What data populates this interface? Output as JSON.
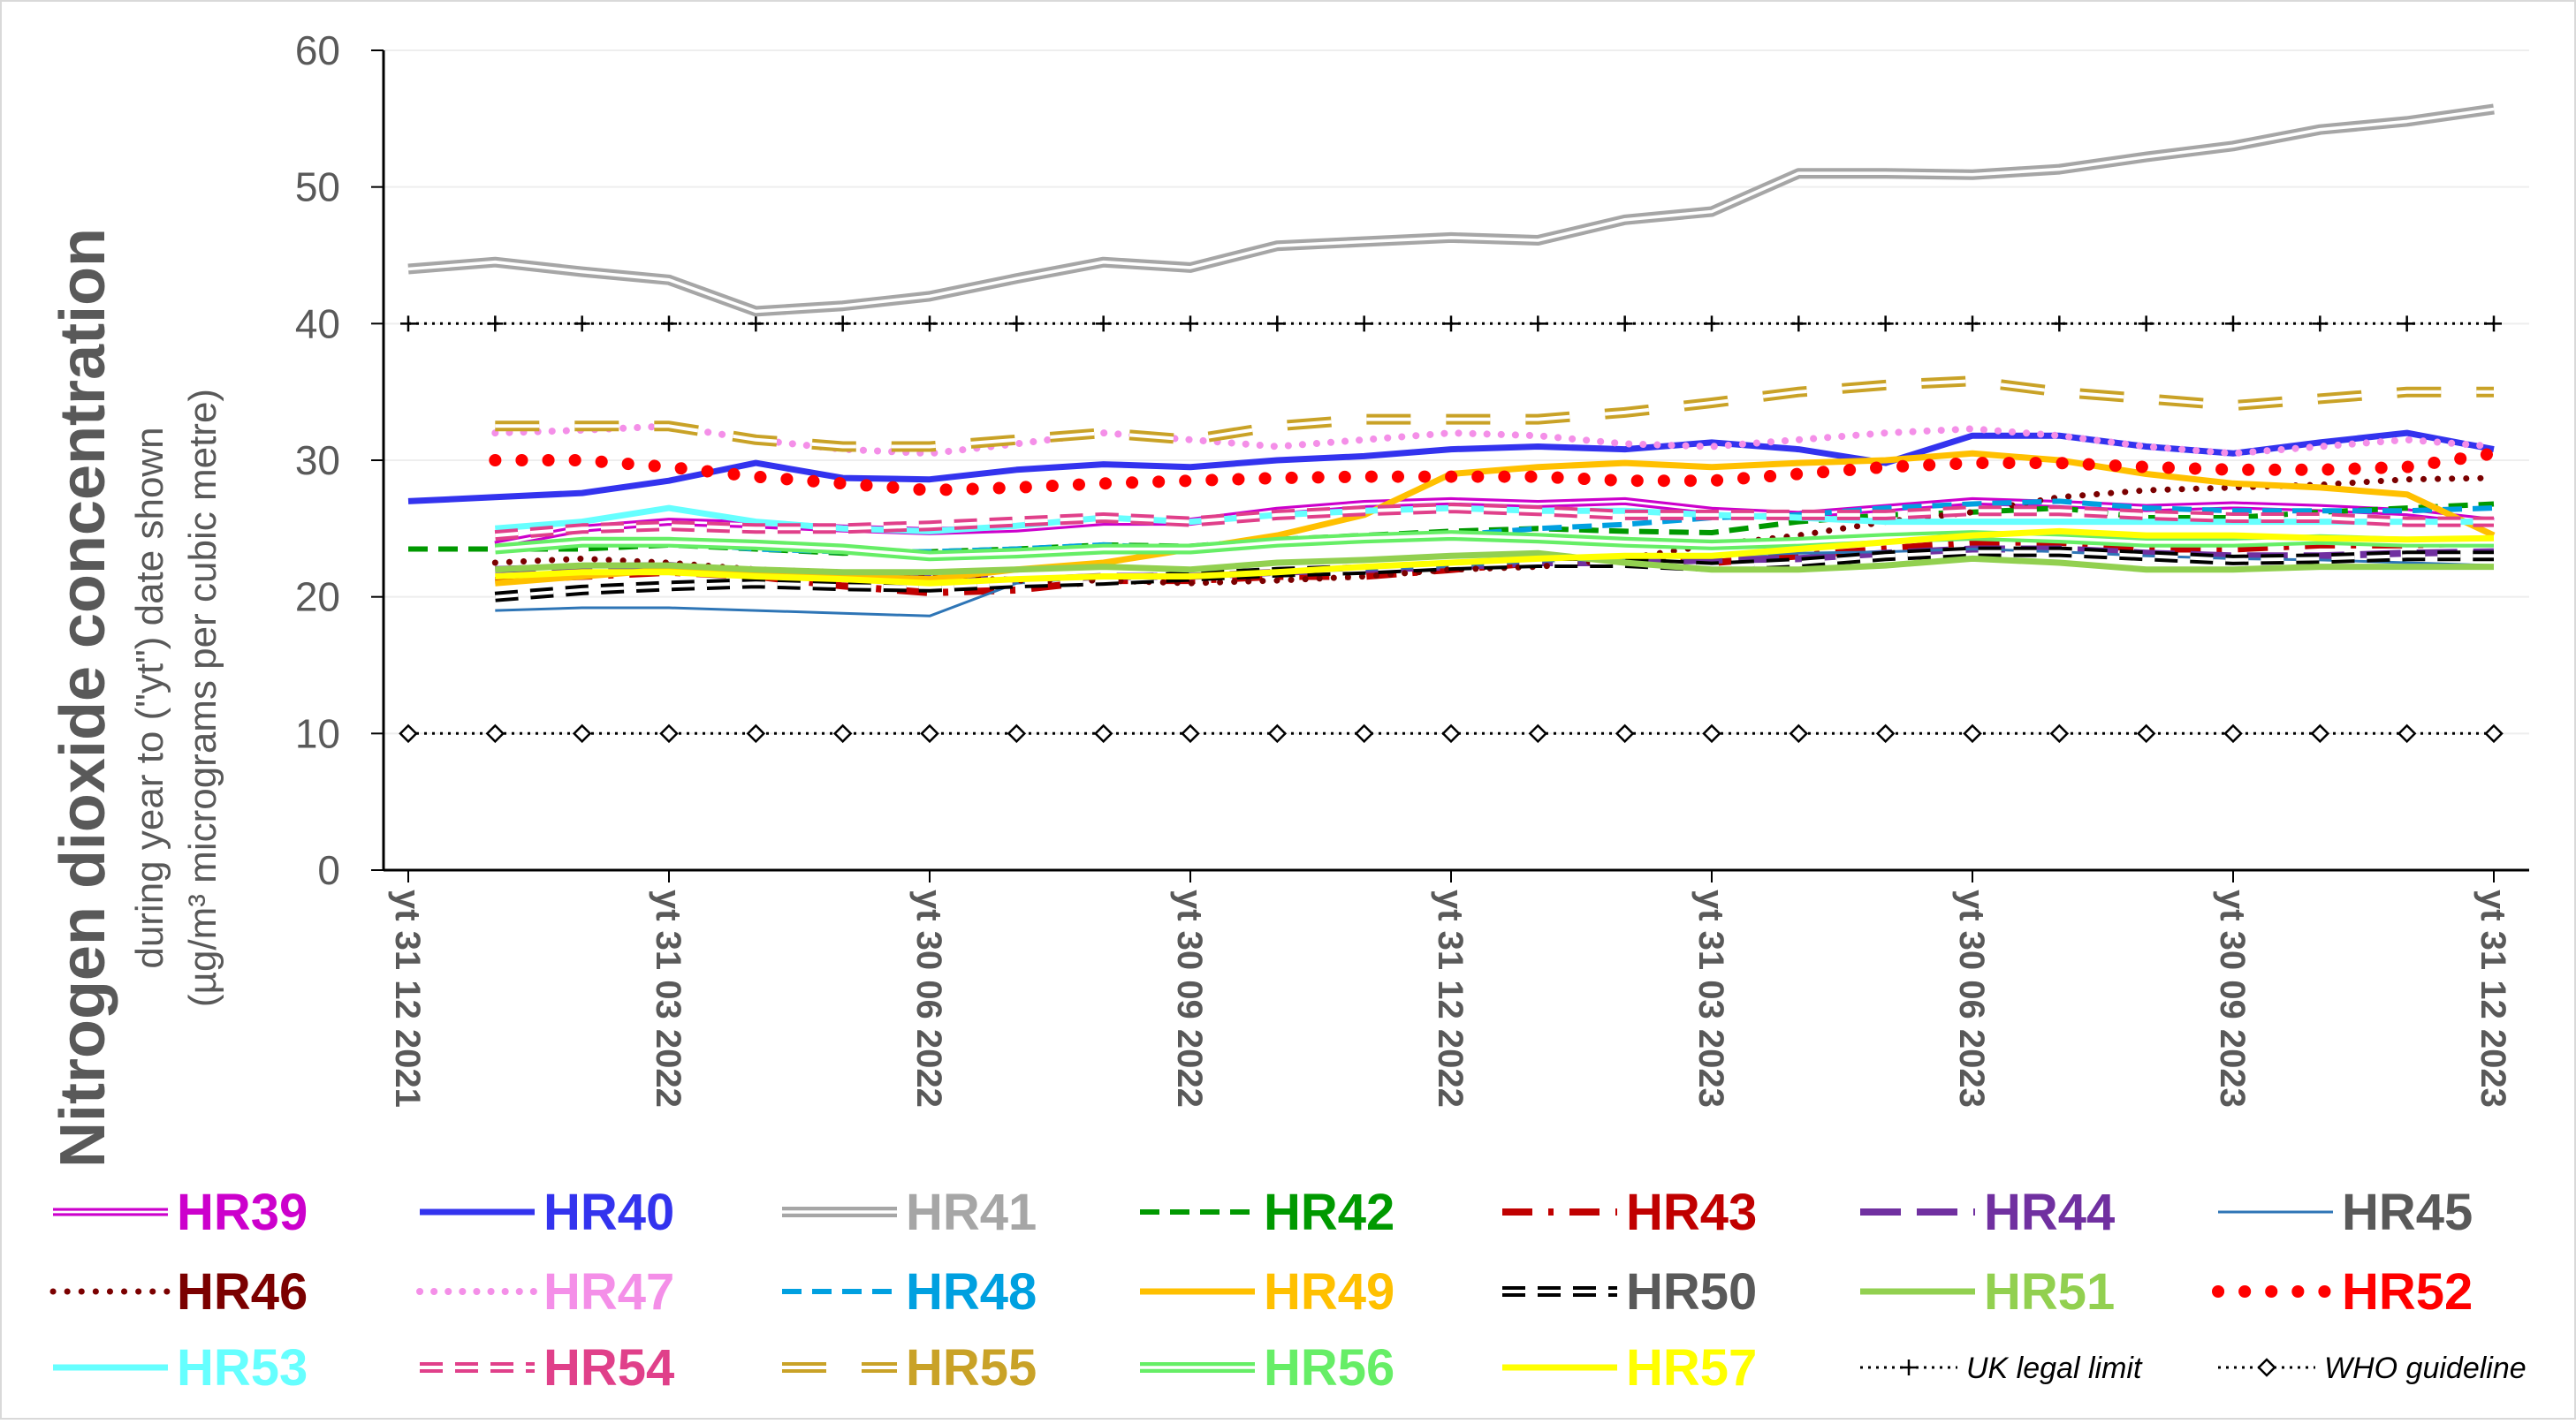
{
  "chart_data": {
    "type": "line",
    "ylabel_main": "Nitrogen dioxide concentration",
    "ylabel_sub1": "during year to (\"yt\") date shown",
    "ylabel_sub2": "(µg/m³ micrograms per cubic metre)",
    "ylim": [
      0,
      60
    ],
    "yticks": [
      "0",
      "10",
      "20",
      "30",
      "40",
      "50",
      "60"
    ],
    "grid": "horizontal",
    "legend_position": "bottom",
    "x": [
      "2021-12-31",
      "2022-01-31",
      "2022-02-28",
      "2022-03-31",
      "2022-04-30",
      "2022-05-31",
      "2022-06-30",
      "2022-07-31",
      "2022-08-31",
      "2022-09-30",
      "2022-10-31",
      "2022-11-30",
      "2022-12-31",
      "2023-01-31",
      "2023-02-28",
      "2023-03-31",
      "2023-04-30",
      "2023-05-31",
      "2023-06-30",
      "2023-07-31",
      "2023-08-31",
      "2023-09-30",
      "2023-10-31",
      "2023-11-30",
      "2023-12-31"
    ],
    "xtick_labels": [
      "yt 31 12 2021",
      "yt 31 03 2022",
      "yt 30 06 2022",
      "yt 30 09 2022",
      "yt 31 12 2022",
      "yt 31 03 2023",
      "yt 30 06 2023",
      "yt 30 09 2023",
      "yt 31 12 2023"
    ],
    "series": [
      {
        "name": "HR39",
        "color": "#CC00CC",
        "style": "double",
        "width": 3,
        "values": [
          null,
          23.8,
          25,
          25.5,
          25.3,
          25,
          24.8,
          25,
          25.5,
          25.5,
          26.3,
          26.8,
          27,
          26.8,
          27,
          26.3,
          26,
          26.5,
          27,
          26.8,
          26.5,
          26.7,
          26.5,
          26.2,
          25.5
        ]
      },
      {
        "name": "HR40",
        "color": "#3333EE",
        "style": "solid",
        "width": 7,
        "values": [
          27,
          27.3,
          27.6,
          28.5,
          29.8,
          28.7,
          28.6,
          29.3,
          29.7,
          29.5,
          30,
          30.3,
          30.8,
          31,
          30.8,
          31.3,
          30.8,
          29.8,
          31.8,
          31.8,
          31,
          30.5,
          31.3,
          32,
          30.8
        ]
      },
      {
        "name": "HR41",
        "color": "#A6A6A6",
        "style": "double",
        "width": 4,
        "values": [
          44,
          44.5,
          43.8,
          43.2,
          40.9,
          41.3,
          42,
          43.3,
          44.5,
          44.1,
          45.7,
          46,
          46.3,
          46.1,
          47.6,
          48.2,
          51,
          51,
          50.9,
          51.3,
          52.2,
          53,
          54.2,
          54.8,
          55.7
        ]
      },
      {
        "name": "HR42",
        "color": "#009900",
        "style": "dashed",
        "width": 6,
        "values": [
          23.5,
          23.5,
          23.5,
          23.8,
          23.5,
          23.2,
          23.3,
          23.5,
          23.8,
          23.7,
          24.2,
          24.5,
          24.8,
          25,
          24.8,
          24.7,
          25.5,
          26,
          26.2,
          26.5,
          25.8,
          25.8,
          26.2,
          26.5,
          26.8
        ]
      },
      {
        "name": "HR43",
        "color": "#C00000",
        "style": "dashdot",
        "width": 8,
        "values": [
          null,
          21.2,
          21.5,
          21.8,
          21.5,
          20.8,
          20.3,
          20.5,
          21.2,
          21.2,
          21.5,
          21.5,
          22,
          22.5,
          22.8,
          22.5,
          23,
          23.5,
          24,
          24,
          23.5,
          23.5,
          23.8,
          23.8,
          24
        ]
      },
      {
        "name": "HR44",
        "color": "#7030A0",
        "style": "longdash",
        "width": 8,
        "values": [
          null,
          22,
          22.2,
          22.3,
          21.8,
          21.5,
          21.5,
          21.2,
          21.5,
          21.5,
          21.8,
          22,
          22.2,
          22.5,
          22.5,
          22.7,
          22.8,
          23.2,
          23.5,
          23.5,
          23.2,
          23,
          23,
          23.2,
          23.3
        ]
      },
      {
        "name": "HR45",
        "color": "#2E75B6",
        "style": "solid",
        "width": 3,
        "values": [
          null,
          19,
          19.2,
          19.2,
          19,
          18.8,
          18.6,
          21,
          21.5,
          21.6,
          21.8,
          22,
          22.2,
          22.6,
          22.8,
          23,
          23.2,
          23.3,
          23.5,
          23.3,
          23,
          22.8,
          22.7,
          22.5,
          22.3
        ]
      },
      {
        "name": "HR46",
        "color": "#7B0000",
        "style": "dotted",
        "width": 7,
        "values": [
          null,
          22.5,
          22.8,
          22.5,
          22,
          21.8,
          21.5,
          21.2,
          21.2,
          21,
          21.2,
          21.5,
          22,
          22.2,
          22.8,
          23.8,
          24.5,
          25.5,
          26.2,
          27.3,
          27.8,
          28,
          28.2,
          28.6,
          28.7
        ]
      },
      {
        "name": "HR47",
        "color": "#F48FE8",
        "style": "dotted",
        "width": 8,
        "values": [
          null,
          32,
          32.2,
          32.5,
          31.5,
          30.8,
          30.5,
          31.2,
          32,
          31.5,
          31,
          31.5,
          32,
          31.8,
          31.2,
          31,
          31.5,
          32,
          32.3,
          31.8,
          31,
          30.5,
          31,
          31.5,
          31
        ]
      },
      {
        "name": "HR48",
        "color": "#00A0E0",
        "style": "dashed",
        "width": 6,
        "values": [
          null,
          null,
          24,
          24,
          23.5,
          23.3,
          23.3,
          23.5,
          23.8,
          23.5,
          24,
          24.2,
          24.5,
          25,
          25.3,
          25.8,
          26,
          26.5,
          26.8,
          27,
          26.5,
          26.3,
          26.3,
          26.3,
          26.5
        ]
      },
      {
        "name": "HR49",
        "color": "#FFC000",
        "style": "solid",
        "width": 7,
        "values": [
          null,
          21,
          21.5,
          22,
          21.8,
          21.5,
          21.3,
          22,
          22.5,
          23.5,
          24.5,
          26,
          29,
          29.5,
          29.8,
          29.5,
          29.8,
          30,
          30.5,
          30,
          29,
          28.3,
          28,
          27.5,
          24.5
        ]
      },
      {
        "name": "HR50",
        "color": "#000000",
        "style": "dashed-double",
        "width": 4,
        "values": [
          null,
          20,
          20.5,
          20.8,
          21,
          20.8,
          20.7,
          21,
          21.2,
          21.5,
          21.8,
          22,
          22.3,
          22.5,
          22.5,
          22.2,
          22.5,
          23,
          23.3,
          23.3,
          23,
          22.7,
          22.8,
          23,
          23
        ]
      },
      {
        "name": "HR51",
        "color": "#92D050",
        "style": "solid",
        "width": 7,
        "values": [
          null,
          22,
          22.3,
          22.3,
          22,
          21.8,
          21.8,
          22,
          22.2,
          22,
          22.5,
          22.7,
          23,
          23.2,
          22.5,
          22,
          22,
          22.3,
          22.8,
          22.5,
          22,
          22,
          22.2,
          22.2,
          22.2
        ]
      },
      {
        "name": "HR52",
        "color": "#FF0000",
        "style": "dots-big",
        "width": 14,
        "values": [
          null,
          30,
          30,
          29.5,
          28.8,
          28.3,
          27.8,
          28,
          28.3,
          28.5,
          28.7,
          28.8,
          28.8,
          28.8,
          28.5,
          28.5,
          29,
          29.5,
          29.8,
          29.8,
          29.5,
          29.3,
          29.3,
          29.5,
          30.5
        ]
      },
      {
        "name": "HR53",
        "color": "#66FFFF",
        "style": "solid",
        "width": 7,
        "values": [
          null,
          25,
          25.5,
          26.5,
          25.5,
          25,
          24.8,
          25.2,
          25.8,
          25.5,
          26,
          26.3,
          26.5,
          26.3,
          26.3,
          26,
          25.8,
          25.5,
          25.5,
          25.5,
          25.5,
          25.5,
          25.5,
          25.5,
          25.5
        ]
      },
      {
        "name": "HR54",
        "color": "#E0408A",
        "style": "dashed-double",
        "width": 4,
        "values": [
          null,
          24.5,
          25,
          25.2,
          25,
          25,
          25.2,
          25.5,
          25.8,
          25.5,
          26,
          26.3,
          26.5,
          26.3,
          26,
          26,
          26,
          26,
          26.3,
          26.3,
          26,
          25.8,
          25.8,
          25.5,
          25.5
        ]
      },
      {
        "name": "HR55",
        "color": "#C9A227",
        "style": "longdash-double",
        "width": 4,
        "values": [
          null,
          32.5,
          32.5,
          32.5,
          31.5,
          31,
          31,
          31.5,
          32,
          31.5,
          32.5,
          33,
          33,
          33,
          33.5,
          34.2,
          35,
          35.5,
          35.8,
          35,
          34.5,
          34,
          34.5,
          35,
          35
        ]
      },
      {
        "name": "HR56",
        "color": "#66EE66",
        "style": "double",
        "width": 4,
        "values": [
          null,
          23.5,
          24,
          24,
          23.8,
          23.5,
          23,
          23.2,
          23.5,
          23.5,
          24,
          24.3,
          24.5,
          24.3,
          24,
          23.8,
          24,
          24.3,
          24.5,
          24.3,
          24,
          24,
          24.2,
          24,
          24
        ]
      },
      {
        "name": "HR57",
        "color": "#FFFF00",
        "style": "solid",
        "width": 7,
        "values": [
          null,
          21.5,
          21.8,
          21.8,
          21.5,
          21.3,
          21,
          21.3,
          21.5,
          21.5,
          21.8,
          22.2,
          22.5,
          22.8,
          23,
          23,
          23.5,
          24,
          24.5,
          24.8,
          24.5,
          24.5,
          24.3,
          24.2,
          24.3
        ]
      },
      {
        "name": "UK legal limit",
        "color": "#000000",
        "style": "limit-plus",
        "width": 3,
        "values": [
          40,
          40,
          40,
          40,
          40,
          40,
          40,
          40,
          40,
          40,
          40,
          40,
          40,
          40,
          40,
          40,
          40,
          40,
          40,
          40,
          40,
          40,
          40,
          40,
          40
        ]
      },
      {
        "name": "WHO guideline",
        "color": "#000000",
        "style": "limit-diamond",
        "width": 3,
        "values": [
          10,
          10,
          10,
          10,
          10,
          10,
          10,
          10,
          10,
          10,
          10,
          10,
          10,
          10,
          10,
          10,
          10,
          10,
          10,
          10,
          10,
          10,
          10,
          10,
          10
        ]
      }
    ]
  }
}
